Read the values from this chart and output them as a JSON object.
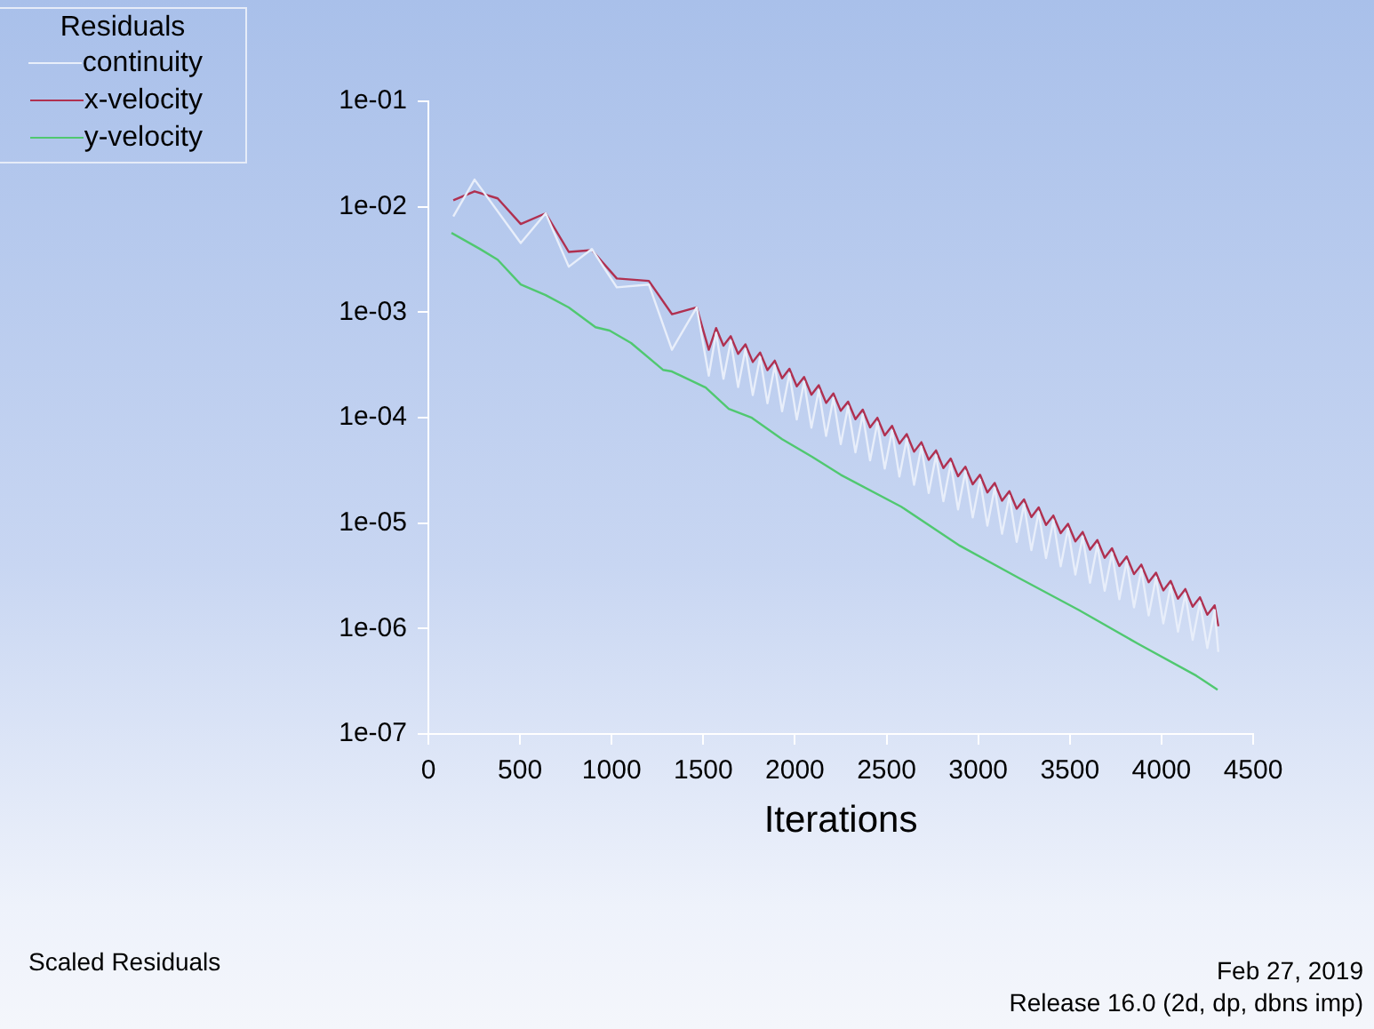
{
  "chart_data": {
    "type": "line",
    "title": "Scaled Residuals",
    "xlabel": "Iterations",
    "legend_title": "Residuals",
    "legend": "top left",
    "grid": false,
    "log": "y",
    "marker": "none",
    "line_style": "solid",
    "annotations": [
      "Feb 27, 2019",
      "Release 16.0 (2d, dp, dbns imp)"
    ],
    "xlim": [
      0,
      4500
    ],
    "xticks": [
      0,
      500,
      1000,
      1500,
      2000,
      2500,
      3000,
      3500,
      4000,
      4500
    ],
    "ylim": [
      1e-07,
      0.1
    ],
    "yticks": [
      {
        "value": 0.1,
        "label": "1e-01"
      },
      {
        "value": 0.01,
        "label": "1e-02"
      },
      {
        "value": 0.001,
        "label": "1e-03"
      },
      {
        "value": 0.0001,
        "label": "1e-04"
      },
      {
        "value": 1e-05,
        "label": "1e-05"
      },
      {
        "value": 1e-06,
        "label": "1e-06"
      },
      {
        "value": 1e-07,
        "label": "1e-07"
      }
    ],
    "series": [
      {
        "name": "continuity",
        "color": "#e8eefa",
        "x": [
          136,
          252,
          504,
          640,
          766,
          892,
          1028,
          1203,
          1329,
          1464,
          1530,
          1570,
          1610,
          1650,
          1690,
          1730,
          1770,
          1810,
          1850,
          1890,
          1930,
          1970,
          2010,
          2050,
          2090,
          2130,
          2170,
          2210,
          2250,
          2290,
          2330,
          2370,
          2410,
          2450,
          2490,
          2530,
          2570,
          2610,
          2650,
          2690,
          2730,
          2770,
          2810,
          2850,
          2890,
          2930,
          2970,
          3010,
          3050,
          3090,
          3130,
          3170,
          3210,
          3250,
          3290,
          3330,
          3370,
          3410,
          3450,
          3490,
          3530,
          3570,
          3610,
          3650,
          3690,
          3730,
          3770,
          3810,
          3850,
          3890,
          3930,
          3970,
          4010,
          4050,
          4090,
          4130,
          4170,
          4210,
          4250,
          4290,
          4310
        ],
        "values": [
          0.0081,
          0.0181,
          0.00453,
          0.00867,
          0.0027,
          0.00397,
          0.00172,
          0.00183,
          0.000441,
          0.00111,
          0.00025,
          0.000637,
          0.000234,
          0.000533,
          0.000195,
          0.000446,
          0.000164,
          0.000374,
          0.000137,
          0.000312,
          0.000115,
          0.000262,
          9.6e-05,
          0.000219,
          8.02e-05,
          0.000183,
          6.7e-05,
          0.000153,
          5.61e-05,
          0.000128,
          4.69e-05,
          0.000107,
          3.93e-05,
          8.98e-05,
          3.29e-05,
          7.52e-05,
          2.76e-05,
          6.29e-05,
          2.31e-05,
          5.27e-05,
          1.93e-05,
          4.4e-05,
          1.61e-05,
          3.68e-05,
          1.35e-05,
          3.09e-05,
          1.13e-05,
          2.58e-05,
          9.47e-06,
          2.16e-05,
          7.92e-06,
          1.81e-05,
          6.63e-06,
          1.51e-05,
          5.54e-06,
          1.27e-05,
          4.65e-06,
          1.06e-05,
          3.89e-06,
          8.87e-06,
          3.25e-06,
          7.42e-06,
          2.72e-06,
          6.21e-06,
          2.28e-06,
          5.19e-06,
          1.9e-06,
          4.35e-06,
          1.59e-06,
          3.64e-06,
          1.33e-06,
          3.04e-06,
          1.12e-06,
          2.55e-06,
          9.34e-07,
          2.13e-06,
          7.82e-07,
          1.78e-06,
          6.53e-07,
          1.49e-06,
          6e-07
        ]
      },
      {
        "name": "x-velocity",
        "color": "#b03050",
        "x": [
          136,
          252,
          378,
          504,
          640,
          766,
          892,
          1028,
          1203,
          1329,
          1464,
          1530,
          1570,
          1610,
          1650,
          1690,
          1730,
          1770,
          1810,
          1850,
          1890,
          1930,
          1970,
          2010,
          2050,
          2090,
          2130,
          2170,
          2210,
          2250,
          2290,
          2330,
          2370,
          2410,
          2450,
          2490,
          2530,
          2570,
          2610,
          2650,
          2690,
          2730,
          2770,
          2810,
          2850,
          2890,
          2930,
          2970,
          3010,
          3050,
          3090,
          3130,
          3170,
          3210,
          3250,
          3290,
          3330,
          3370,
          3410,
          3450,
          3490,
          3530,
          3570,
          3610,
          3650,
          3690,
          3730,
          3770,
          3810,
          3850,
          3890,
          3930,
          3970,
          4010,
          4050,
          4090,
          4130,
          4170,
          4210,
          4250,
          4290,
          4310
        ],
        "values": [
          0.0115,
          0.014,
          0.012,
          0.00686,
          0.00867,
          0.00373,
          0.00388,
          0.00209,
          0.00198,
          0.000958,
          0.00111,
          0.00044,
          0.000708,
          0.000481,
          0.000592,
          0.000403,
          0.000496,
          0.000337,
          0.000415,
          0.000282,
          0.000347,
          0.000236,
          0.000291,
          0.000198,
          0.000243,
          0.000165,
          0.000203,
          0.000138,
          0.00017,
          0.000116,
          0.000142,
          9.66e-05,
          0.000119,
          8.09e-05,
          9.98e-05,
          6.79e-05,
          8.35e-05,
          5.68e-05,
          6.99e-05,
          4.75e-05,
          5.85e-05,
          3.98e-05,
          4.89e-05,
          3.33e-05,
          4.09e-05,
          2.78e-05,
          3.43e-05,
          2.33e-05,
          2.87e-05,
          1.95e-05,
          2.4e-05,
          1.63e-05,
          2.01e-05,
          1.37e-05,
          1.68e-05,
          1.14e-05,
          1.41e-05,
          9.59e-06,
          1.18e-05,
          8.02e-06,
          9.85e-06,
          6.7e-06,
          8.24e-06,
          5.6e-06,
          6.9e-06,
          4.69e-06,
          5.77e-06,
          3.92e-06,
          4.83e-06,
          3.28e-06,
          4.04e-06,
          2.75e-06,
          3.38e-06,
          2.3e-06,
          2.83e-06,
          1.92e-06,
          2.37e-06,
          1.61e-06,
          1.98e-06,
          1.35e-06,
          1.66e-06,
          1.05e-06
        ]
      },
      {
        "name": "y-velocity",
        "color": "#50c870",
        "x": [
          126,
          281,
          378,
          504,
          640,
          766,
          912,
          989,
          1106,
          1280,
          1329,
          1513,
          1639,
          1765,
          1930,
          2095,
          2250,
          2580,
          2900,
          3220,
          3549,
          3870,
          4190,
          4306
        ],
        "values": [
          0.00565,
          0.00398,
          0.00315,
          0.00183,
          0.00145,
          0.00111,
          0.00072,
          0.00067,
          0.00051,
          0.000284,
          0.000274,
          0.000193,
          0.000121,
          9.96e-05,
          6.25e-05,
          4.24e-05,
          2.87e-05,
          1.43e-05,
          6.1e-06,
          3.03e-06,
          1.5e-06,
          7.2e-07,
          3.57e-07,
          2.62e-07
        ]
      }
    ]
  }
}
